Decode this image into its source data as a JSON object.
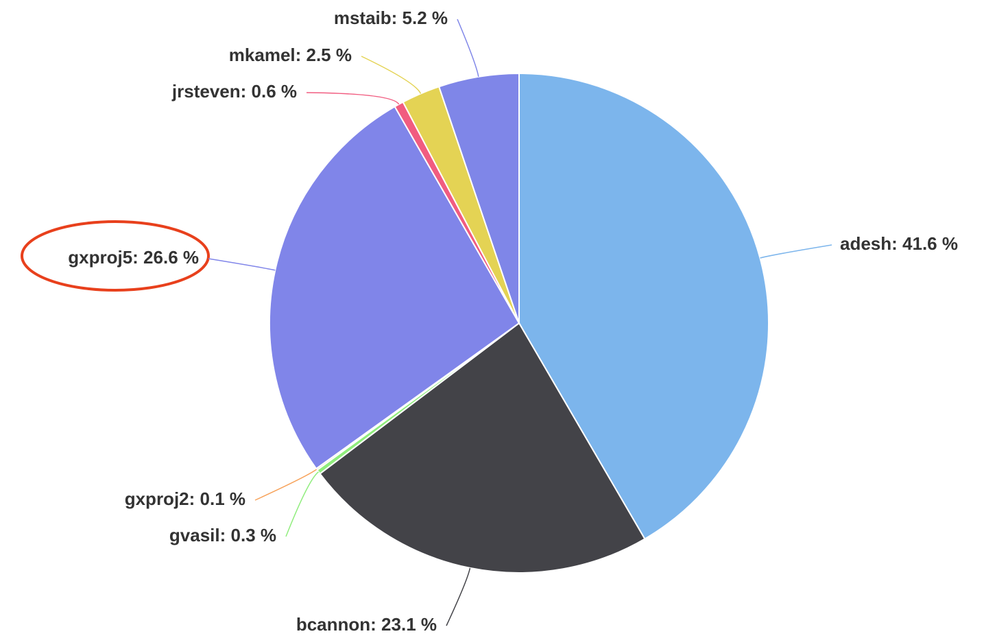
{
  "chart_data": {
    "type": "pie",
    "values": [
      41.6,
      23.1,
      0.3,
      0.1,
      26.6,
      0.6,
      2.5,
      5.2
    ],
    "value_labels": [
      "adesh: 41.6 %",
      "bcannon: 23.1 %",
      "gvasil: 0.3 %",
      "gxproj2: 0.1 %",
      "gxproj5: 26.6 %",
      "jrsteven: 0.6 %",
      "mkamel: 2.5 %",
      "mstaib: 5.2 %"
    ],
    "colors": [
      "#7cb5ec",
      "#434348",
      "#90ed7d",
      "#f7a35c",
      "#8085e9",
      "#f15c80",
      "#e4d354",
      "#7f86e8"
    ]
  }
}
